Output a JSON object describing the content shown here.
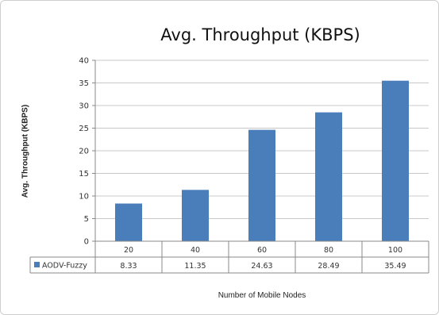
{
  "chart_data": {
    "type": "bar",
    "title": "Avg. Throughput (KBPS)",
    "ylabel": "Avg. Throughput (KBPS)",
    "xlabel": "Number of Mobile Nodes",
    "categories": [
      "20",
      "40",
      "60",
      "80",
      "100"
    ],
    "ylim": [
      0,
      40
    ],
    "yticks": [
      "0",
      "5",
      "10",
      "15",
      "20",
      "25",
      "30",
      "35",
      "40"
    ],
    "grid": true,
    "legend": "data-table",
    "series": [
      {
        "name": "AODV-Fuzzy",
        "values": [
          8.33,
          11.35,
          24.63,
          28.49,
          35.49
        ],
        "value_labels": [
          "8.33",
          "11.35",
          "24.63",
          "28.49",
          "35.49"
        ],
        "color": "#4a7ebb"
      }
    ]
  }
}
